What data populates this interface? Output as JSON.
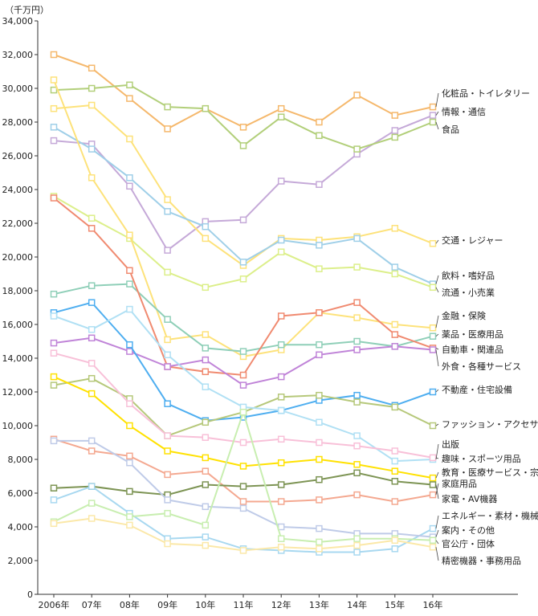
{
  "chart_data": {
    "type": "line",
    "unit_label": "（千万円）",
    "ylim": [
      0,
      34000
    ],
    "grid": false,
    "categories": [
      "2006年",
      "07年",
      "08年",
      "09年",
      "10年",
      "11年",
      "12年",
      "13年",
      "14年",
      "15年",
      "16年"
    ],
    "y_ticks": [
      "0",
      "2,000",
      "4,000",
      "6,000",
      "8,000",
      "10,000",
      "12,000",
      "14,000",
      "16,000",
      "18,000",
      "20,000",
      "22,000",
      "24,000",
      "26,000",
      "28,000",
      "30,000",
      "32,000",
      "34,000"
    ],
    "series": [
      {
        "name": "化粧品・トイレタリー",
        "color": "#f5b86c",
        "values": [
          32000,
          31200,
          29400,
          27600,
          28800,
          27700,
          28800,
          28000,
          29600,
          28400,
          28900
        ]
      },
      {
        "name": "情報・通信",
        "color": "#c5a9d8",
        "values": [
          26900,
          26700,
          24200,
          20400,
          22100,
          22200,
          24500,
          24300,
          26100,
          27500,
          28400
        ]
      },
      {
        "name": "食品",
        "color": "#b2cf7a",
        "values": [
          29900,
          30000,
          30200,
          28900,
          28800,
          26600,
          28300,
          27200,
          26400,
          27100,
          28000
        ]
      },
      {
        "name": "交通・レジャー",
        "color": "#fde27a",
        "values": [
          28800,
          29000,
          27000,
          23400,
          21100,
          19500,
          21100,
          21000,
          21200,
          21700,
          20800
        ]
      },
      {
        "name": "飲料・嗜好品",
        "color": "#9fcfe8",
        "values": [
          27700,
          26400,
          24700,
          22700,
          21800,
          19700,
          21000,
          20700,
          21100,
          19400,
          18400
        ]
      },
      {
        "name": "流通・小売業",
        "color": "#dcef8a",
        "values": [
          23600,
          22300,
          21100,
          19100,
          18200,
          18700,
          20300,
          19300,
          19400,
          19000,
          18200
        ]
      },
      {
        "name": "金融・保険",
        "color": "#fde27a",
        "values": [
          30500,
          24700,
          21300,
          15100,
          15400,
          14100,
          14500,
          16700,
          16400,
          16000,
          15800
        ]
      },
      {
        "name": "薬品・医療用品",
        "color": "#8fcfb8",
        "values": [
          17800,
          18300,
          18400,
          16300,
          14600,
          14400,
          14800,
          14800,
          15000,
          14700,
          15300
        ]
      },
      {
        "name": "自動車・関連品",
        "color": "#f08a70",
        "values": [
          23500,
          21700,
          19200,
          13500,
          13200,
          13000,
          16500,
          16700,
          17300,
          15400,
          14600
        ]
      },
      {
        "name": "外食・各種サービス",
        "color": "#c084d8",
        "values": [
          14900,
          15200,
          14400,
          13500,
          13900,
          12400,
          12900,
          14200,
          14500,
          14700,
          14500
        ]
      },
      {
        "name": "不動産・住宅設備",
        "color": "#4eaef0",
        "values": [
          16700,
          17300,
          14800,
          11300,
          10300,
          10500,
          10900,
          11500,
          11800,
          11200,
          12000
        ]
      },
      {
        "name": "ファッション・アクセサリー",
        "color": "#b6c87a",
        "values": [
          12400,
          12800,
          11600,
          9400,
          10200,
          10800,
          11700,
          11800,
          11400,
          11100,
          10000
        ]
      },
      {
        "name": "出版",
        "color": "#b0e0f4",
        "values": [
          16500,
          15700,
          16900,
          14200,
          12300,
          11100,
          10900,
          10200,
          9400,
          7900,
          8000
        ]
      },
      {
        "name": "趣味・スポーツ用品",
        "color": "#f8c0d8",
        "values": [
          14300,
          13700,
          11300,
          9400,
          9300,
          9000,
          9200,
          9000,
          8800,
          8500,
          8100
        ]
      },
      {
        "name": "教育・医療サービス・宗教",
        "color": "#ffe100",
        "values": [
          12900,
          11900,
          10000,
          8500,
          8100,
          7600,
          7800,
          8000,
          7700,
          7300,
          6900
        ]
      },
      {
        "name": "家庭用品",
        "color": "#f4a890",
        "values": [
          9200,
          8500,
          8200,
          7100,
          7300,
          5500,
          5500,
          5600,
          5900,
          5500,
          5900
        ]
      },
      {
        "name": "家電・AV機器",
        "color": "#7d9454",
        "values": [
          6300,
          6400,
          6100,
          5900,
          6500,
          6400,
          6500,
          6800,
          7200,
          6700,
          6500
        ]
      },
      {
        "name": "エネルギー・素材・機械",
        "color": "#a8d8f0",
        "values": [
          5600,
          6400,
          4800,
          3300,
          3400,
          2700,
          2600,
          2500,
          2500,
          2700,
          3900
        ]
      },
      {
        "name": "案内・その他",
        "color": "#bfcbe8",
        "values": [
          9100,
          9100,
          7800,
          5600,
          5200,
          5100,
          4000,
          3900,
          3600,
          3600,
          3400
        ]
      },
      {
        "name": "官公庁・団体",
        "color": "#c8eeb0",
        "values": [
          4300,
          5400,
          4600,
          4800,
          4100,
          10800,
          3300,
          3100,
          3300,
          3300,
          3200
        ]
      },
      {
        "name": "精密機器・事務用品",
        "color": "#fbe8a8",
        "values": [
          4200,
          4500,
          4100,
          3000,
          2900,
          2600,
          2800,
          2700,
          2900,
          3200,
          2800
        ]
      }
    ]
  }
}
